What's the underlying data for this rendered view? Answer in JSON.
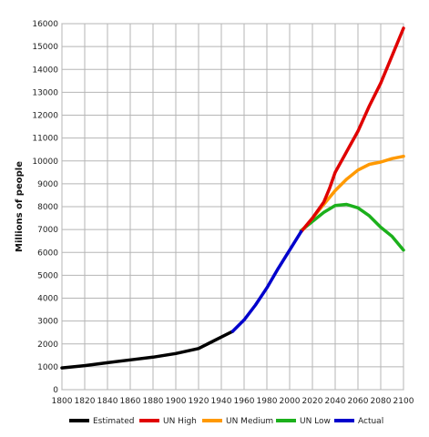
{
  "chart_data": {
    "type": "line",
    "title": "",
    "xlabel": "",
    "ylabel": "Millions of people",
    "xlim": [
      1800,
      2100
    ],
    "ylim": [
      0,
      16000
    ],
    "x_ticks": [
      1800,
      1820,
      1840,
      1860,
      1880,
      1900,
      1920,
      1940,
      1960,
      1980,
      2000,
      2020,
      2040,
      2060,
      2080,
      2100
    ],
    "y_ticks": [
      0,
      1000,
      2000,
      3000,
      4000,
      5000,
      6000,
      7000,
      8000,
      9000,
      10000,
      11000,
      12000,
      13000,
      14000,
      15000,
      16000
    ],
    "grid": true,
    "legend_position": "bottom",
    "series": [
      {
        "name": "Estimated",
        "color": "#000000",
        "points": [
          [
            1800,
            950
          ],
          [
            1820,
            1050
          ],
          [
            1840,
            1180
          ],
          [
            1860,
            1300
          ],
          [
            1880,
            1420
          ],
          [
            1900,
            1580
          ],
          [
            1920,
            1800
          ],
          [
            1930,
            2050
          ],
          [
            1940,
            2300
          ],
          [
            1950,
            2550
          ]
        ]
      },
      {
        "name": "UN High",
        "color": "#e00000",
        "points": [
          [
            2010,
            6900
          ],
          [
            2020,
            7500
          ],
          [
            2030,
            8200
          ],
          [
            2035,
            8800
          ],
          [
            2040,
            9500
          ],
          [
            2050,
            10400
          ],
          [
            2060,
            11300
          ],
          [
            2070,
            12400
          ],
          [
            2080,
            13400
          ],
          [
            2090,
            14600
          ],
          [
            2100,
            15800
          ]
        ]
      },
      {
        "name": "UN Medium",
        "color": "#ff9900",
        "points": [
          [
            2010,
            6900
          ],
          [
            2020,
            7500
          ],
          [
            2030,
            8100
          ],
          [
            2040,
            8700
          ],
          [
            2050,
            9200
          ],
          [
            2060,
            9600
          ],
          [
            2070,
            9850
          ],
          [
            2080,
            9950
          ],
          [
            2090,
            10100
          ],
          [
            2100,
            10200
          ]
        ]
      },
      {
        "name": "UN Low",
        "color": "#1cb01c",
        "points": [
          [
            2010,
            6950
          ],
          [
            2020,
            7350
          ],
          [
            2030,
            7750
          ],
          [
            2040,
            8050
          ],
          [
            2050,
            8100
          ],
          [
            2060,
            7950
          ],
          [
            2070,
            7600
          ],
          [
            2080,
            7100
          ],
          [
            2090,
            6700
          ],
          [
            2100,
            6100
          ]
        ]
      },
      {
        "name": "Actual",
        "color": "#0000cc",
        "points": [
          [
            1950,
            2550
          ],
          [
            1960,
            3050
          ],
          [
            1970,
            3700
          ],
          [
            1980,
            4450
          ],
          [
            1990,
            5300
          ],
          [
            2000,
            6100
          ],
          [
            2010,
            6900
          ]
        ]
      }
    ]
  }
}
